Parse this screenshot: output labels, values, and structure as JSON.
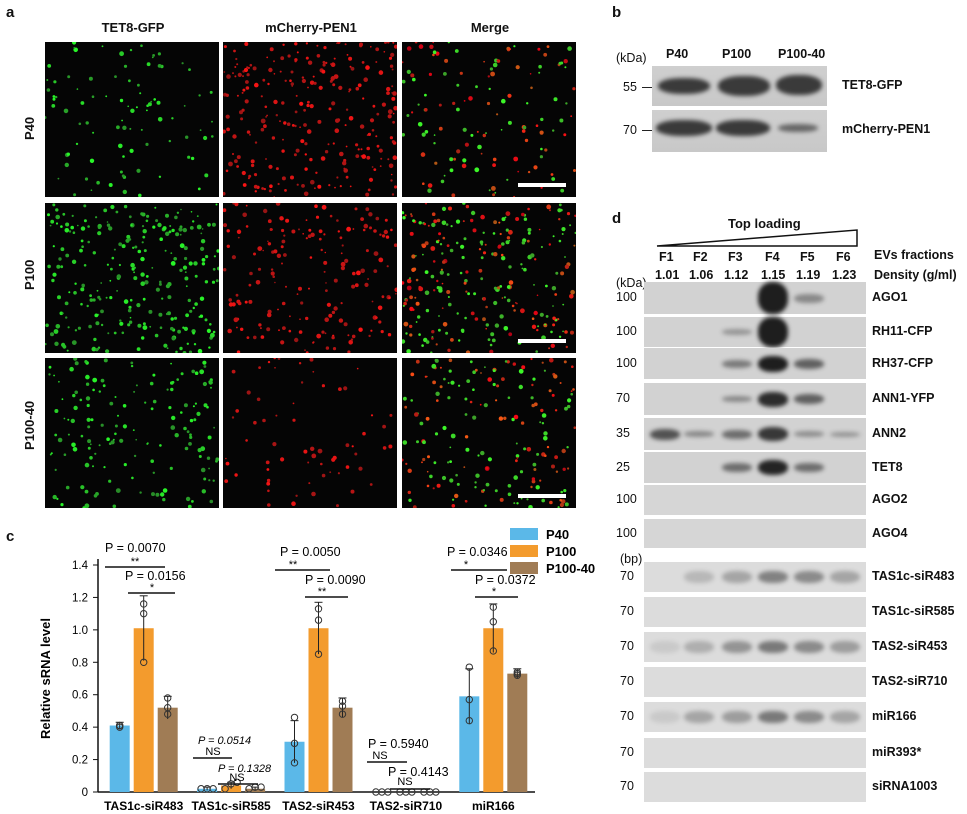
{
  "panel_labels": {
    "a": "a",
    "b": "b",
    "c": "c",
    "d": "d"
  },
  "panel_a": {
    "columns": [
      "TET8-GFP",
      "mCherry-PEN1",
      "Merge"
    ],
    "rows": [
      "P40",
      "P100",
      "P100-40"
    ]
  },
  "panel_b": {
    "unit": "(kDa)",
    "lanes": [
      "P40",
      "P100",
      "P100-40"
    ],
    "markers": [
      "55",
      "70"
    ],
    "bands": [
      "TET8-GFP",
      "mCherry-PEN1"
    ]
  },
  "panel_d": {
    "loading": "Top loading",
    "fractions": [
      "F1",
      "F2",
      "F3",
      "F4",
      "F5",
      "F6"
    ],
    "densities": [
      "1.01",
      "1.06",
      "1.12",
      "1.15",
      "1.19",
      "1.23"
    ],
    "fraction_label": "EVs fractions",
    "density_label": "Density (g/ml)",
    "unit_protein": "(kDa)",
    "unit_rna": "(bp)",
    "protein_rows": [
      {
        "marker": "100",
        "label": "AGO1"
      },
      {
        "marker": "100",
        "label": "RH11-CFP"
      },
      {
        "marker": "100",
        "label": "RH37-CFP"
      },
      {
        "marker": "70",
        "label": "ANN1-YFP"
      },
      {
        "marker": "35",
        "label": "ANN2"
      },
      {
        "marker": "25",
        "label": "TET8"
      },
      {
        "marker": "100",
        "label": "AGO2"
      },
      {
        "marker": "100",
        "label": "AGO4"
      }
    ],
    "rna_rows": [
      {
        "marker": "70",
        "label": "TAS1c-siR483"
      },
      {
        "marker": "70",
        "label": "TAS1c-siR585"
      },
      {
        "marker": "70",
        "label": "TAS2-siR453"
      },
      {
        "marker": "70",
        "label": "TAS2-siR710"
      },
      {
        "marker": "70",
        "label": "miR166"
      },
      {
        "marker": "70",
        "label": "miR393*"
      },
      {
        "marker": "70",
        "label": "siRNA1003"
      }
    ]
  },
  "colors": {
    "P40": "#5bb8e8",
    "P100": "#f39b2d",
    "P100-40": "#a07c55"
  },
  "chart_data": {
    "type": "bar",
    "ylabel": "Relative sRNA level",
    "ylim": [
      0,
      1.4
    ],
    "yticks": [
      "0",
      "0.2",
      "0.4",
      "0.6",
      "0.8",
      "1.0",
      "1.2",
      "1.4"
    ],
    "categories": [
      "TAS1c-siR483",
      "TAS1c-siR585",
      "TAS2-siR453",
      "TAS2-siR710",
      "miR166"
    ],
    "series": [
      {
        "name": "P40",
        "values": [
          0.41,
          0.02,
          0.31,
          0.0,
          0.59
        ],
        "err": [
          0.02,
          0.01,
          0.13,
          0.0,
          0.17
        ],
        "points": [
          [
            0.4,
            0.41,
            0.41
          ],
          [
            0.02,
            0.02,
            0.02
          ],
          [
            0.18,
            0.3,
            0.46
          ],
          [
            0,
            0,
            0
          ],
          [
            0.44,
            0.57,
            0.77
          ]
        ]
      },
      {
        "name": "P100",
        "values": [
          1.01,
          0.04,
          1.01,
          0.0,
          1.01
        ],
        "err": [
          0.2,
          0.02,
          0.16,
          0.0,
          0.15
        ],
        "points": [
          [
            0.8,
            1.1,
            1.16
          ],
          [
            0.02,
            0.05,
            0.06
          ],
          [
            0.85,
            1.06,
            1.13
          ],
          [
            0,
            0,
            0
          ],
          [
            0.87,
            1.05,
            1.14
          ]
        ]
      },
      {
        "name": "P100-40",
        "values": [
          0.52,
          0.02,
          0.52,
          0.0,
          0.73
        ],
        "err": [
          0.07,
          0.01,
          0.06,
          0.0,
          0.03
        ],
        "points": [
          [
            0.48,
            0.52,
            0.58
          ],
          [
            0.02,
            0.03,
            0.03
          ],
          [
            0.48,
            0.53,
            0.56
          ],
          [
            0,
            0,
            0
          ],
          [
            0.72,
            0.73,
            0.74
          ]
        ]
      }
    ],
    "annotations": [
      {
        "text": "P = 0.0070",
        "marks": "**"
      },
      {
        "text": "P = 0.0156",
        "marks": "*"
      },
      {
        "text": "P = 0.0514",
        "marks": "NS"
      },
      {
        "text": "P = 0.1328",
        "marks": "NS"
      },
      {
        "text": "P = 0.0050",
        "marks": "**"
      },
      {
        "text": "P = 0.0090",
        "marks": "**"
      },
      {
        "text": "P = 0.5940",
        "marks": "NS"
      },
      {
        "text": "P = 0.4143",
        "marks": "NS"
      },
      {
        "text": "P = 0.0346",
        "marks": "*"
      },
      {
        "text": "P = 0.0372",
        "marks": "*"
      }
    ]
  }
}
